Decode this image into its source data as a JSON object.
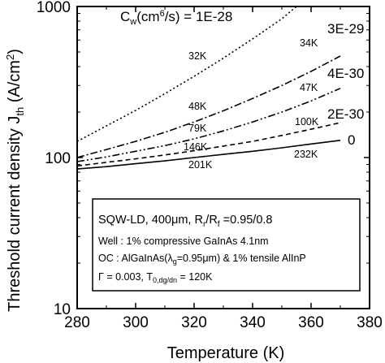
{
  "chart_data": {
    "type": "line",
    "x_axis": {
      "label": "Temperature (K)",
      "range": [
        280,
        380
      ],
      "ticks": [
        280,
        300,
        320,
        340,
        360,
        380
      ]
    },
    "y_axis": {
      "label": "Threshold current density J",
      "label_sub": "th",
      "label_unit_a": "(A/cm",
      "label_unit_sup": "2",
      "label_unit_b": ")",
      "scale": "log",
      "range": [
        10,
        1000
      ],
      "ticks": [
        10,
        100,
        1000
      ],
      "tick_labels": [
        "10",
        "100",
        "1000"
      ]
    },
    "legend_title": {
      "c": "C",
      "c_sub": "w",
      "unit_a": "(cm",
      "unit_sup": "6",
      "unit_b": "/s) = "
    },
    "series": [
      {
        "name": "1E-28",
        "style": "dotted",
        "x": [
          280,
          290,
          300,
          310,
          320,
          330,
          340,
          350,
          355
        ],
        "y": [
          128,
          162,
          205,
          265,
          345,
          455,
          610,
          830,
          1000
        ]
      },
      {
        "name": "3E-29",
        "style": "dashdot",
        "x": [
          280,
          290,
          300,
          310,
          320,
          330,
          340,
          350,
          360,
          370
        ],
        "y": [
          100,
          113,
          128,
          147,
          172,
          204,
          246,
          300,
          372,
          470
        ]
      },
      {
        "name": "4E-30",
        "style": "dashdotdot",
        "x": [
          280,
          290,
          300,
          310,
          320,
          330,
          340,
          350,
          360,
          370
        ],
        "y": [
          94,
          101,
          110,
          120,
          133,
          150,
          172,
          200,
          237,
          287
        ]
      },
      {
        "name": "2E-30",
        "style": "dashed",
        "x": [
          280,
          290,
          300,
          310,
          320,
          330,
          340,
          350,
          360,
          370
        ],
        "y": [
          88,
          93,
          98,
          104,
          111,
          119,
          128,
          140,
          154,
          170
        ]
      },
      {
        "name": "0",
        "style": "solid",
        "x": [
          280,
          290,
          300,
          310,
          320,
          330,
          340,
          350,
          360,
          370
        ],
        "y": [
          84,
          87,
          91,
          95,
          100,
          105,
          110,
          116,
          123,
          130
        ]
      }
    ],
    "annotations": [
      "32K",
      "48K",
      "79K",
      "146K",
      "201K",
      "34K",
      "47K",
      "100K",
      "232K"
    ],
    "info_box": {
      "line1_a": "SQW-LD, 400μm, R",
      "line1_sub1": "r",
      "line1_b": "/R",
      "line1_sub2": "f",
      "line1_c": " =0.95/0.8",
      "line2": "Well : 1% compressive GaInAs 4.1nm",
      "line3_a": "OC : AlGaInAs(λ",
      "line3_sub": "g",
      "line3_b": "=0.95μm)  & 1% tensile AlInP",
      "line4_a": "Γ = 0.003,  T",
      "line4_sub": "0,dg/dn",
      "line4_b": " = 120K"
    }
  }
}
